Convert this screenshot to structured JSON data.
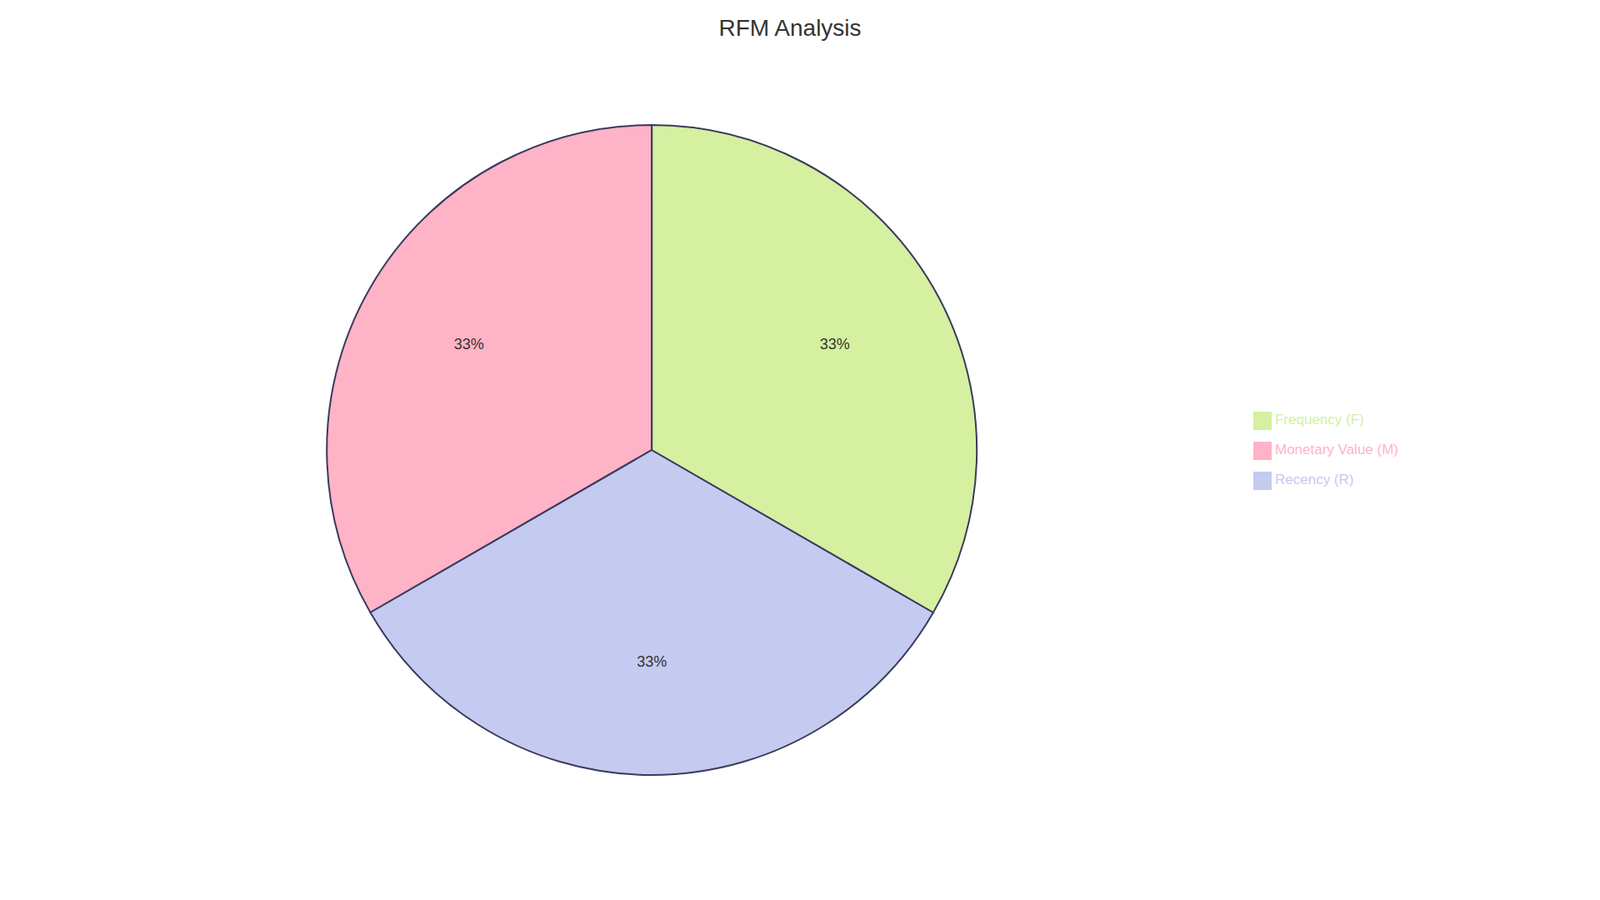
{
  "chart_data": {
    "type": "pie",
    "title": "RFM Analysis",
    "categories": [
      "Monetary Value (M)",
      "Recency (R)",
      "Frequency (F)"
    ],
    "values": [
      33,
      33,
      33
    ],
    "value_labels": [
      "33%",
      "33%",
      "33%"
    ],
    "colors": [
      "#FFB3C6",
      "#C5CAF0",
      "#D4F0A0"
    ],
    "legend": "right",
    "data_labels": true
  }
}
